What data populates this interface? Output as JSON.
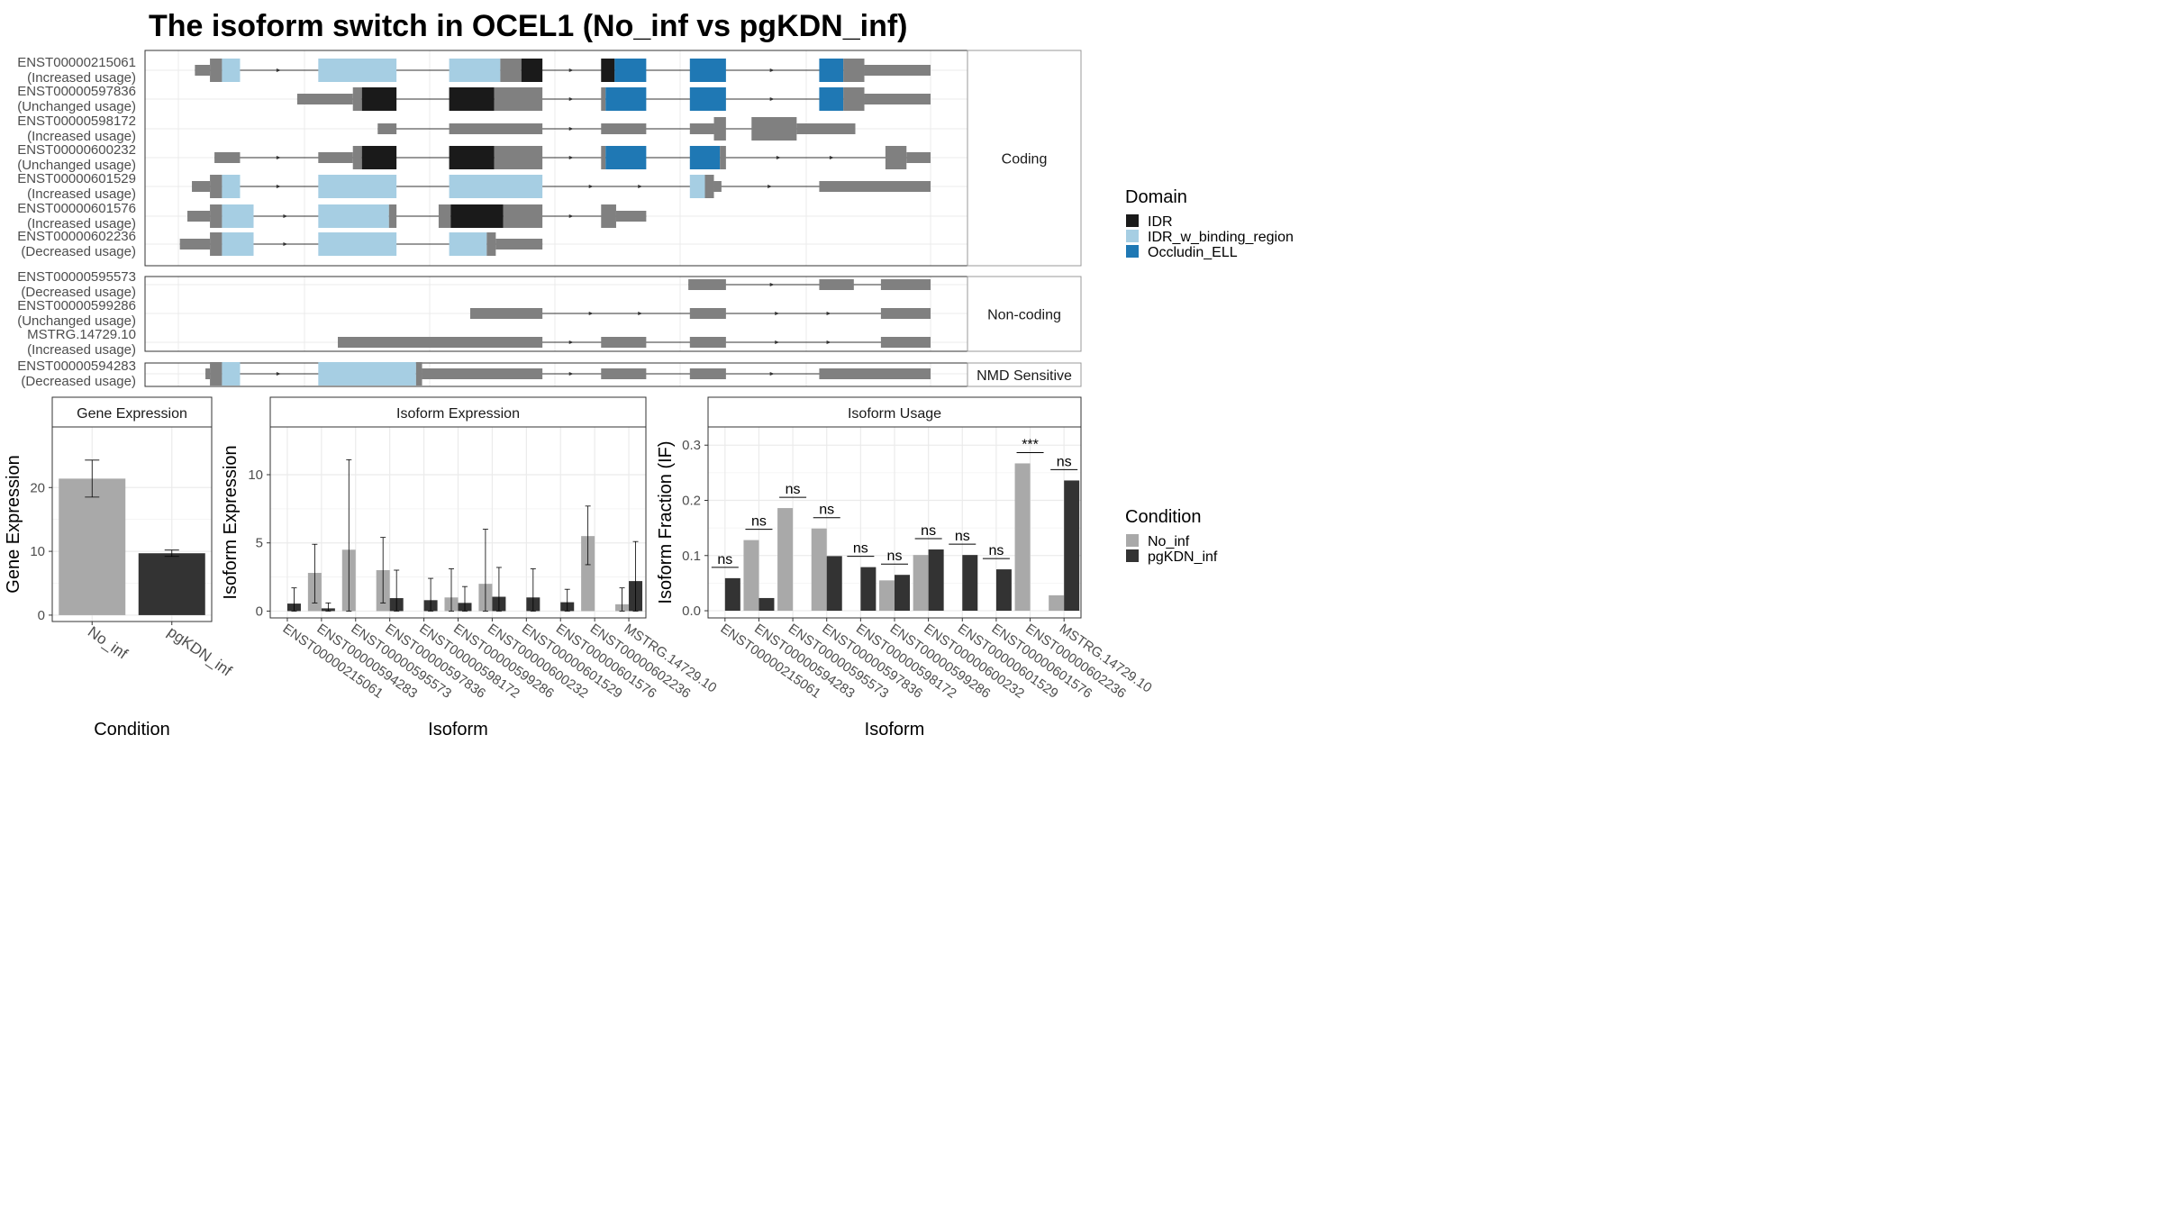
{
  "title": "The isoform switch in OCEL1 (No_inf vs pgKDN_inf)",
  "colors": {
    "IDR": "#1a1a1a",
    "IDR_w_binding_region": "#a6cee3",
    "Occludin_ELL": "#1f78b4",
    "exon": "#808080",
    "No_inf": "#a9a9a9",
    "pgKDN_inf": "#333333"
  },
  "domain_legend": {
    "title": "Domain",
    "items": [
      {
        "key": "IDR",
        "label": "IDR"
      },
      {
        "key": "IDR_w_binding_region",
        "label": "IDR_w_binding_region"
      },
      {
        "key": "Occludin_ELL",
        "label": "Occludin_ELL"
      }
    ]
  },
  "condition_legend": {
    "title": "Condition",
    "items": [
      {
        "key": "No_inf",
        "label": "No_inf"
      },
      {
        "key": "pgKDN_inf",
        "label": "pgKDN_inf"
      }
    ]
  },
  "structure": {
    "xlim": [
      0,
      1000
    ],
    "panels": [
      {
        "label": "Coding",
        "tracks": [
          {
            "id": "ENST00000215061",
            "usage": "(Increased usage)",
            "span": [
              22,
              1000
            ],
            "segments": [
              {
                "s": 22,
                "e": 42,
                "k": "u"
              },
              {
                "s": 42,
                "e": 58,
                "k": "exon"
              },
              {
                "s": 58,
                "e": 82,
                "k": "IDR_w_binding_region"
              },
              {
                "s": 186,
                "e": 290,
                "k": "IDR_w_binding_region"
              },
              {
                "s": 360,
                "e": 428,
                "k": "IDR_w_binding_region"
              },
              {
                "s": 428,
                "e": 456,
                "k": "exon"
              },
              {
                "s": 456,
                "e": 484,
                "k": "IDR"
              },
              {
                "s": 562,
                "e": 580,
                "k": "IDR"
              },
              {
                "s": 580,
                "e": 622,
                "k": "Occludin_ELL"
              },
              {
                "s": 680,
                "e": 728,
                "k": "Occludin_ELL"
              },
              {
                "s": 852,
                "e": 884,
                "k": "Occludin_ELL"
              },
              {
                "s": 884,
                "e": 912,
                "k": "exon"
              },
              {
                "s": 912,
                "e": 1000,
                "k": "u"
              }
            ]
          },
          {
            "id": "ENST00000597836",
            "usage": "(Unchanged usage)",
            "span": [
              158,
              1000
            ],
            "segments": [
              {
                "s": 158,
                "e": 232,
                "k": "u"
              },
              {
                "s": 232,
                "e": 244,
                "k": "exon"
              },
              {
                "s": 244,
                "e": 290,
                "k": "IDR"
              },
              {
                "s": 360,
                "e": 420,
                "k": "IDR"
              },
              {
                "s": 420,
                "e": 484,
                "k": "exon"
              },
              {
                "s": 562,
                "e": 568,
                "k": "exon"
              },
              {
                "s": 568,
                "e": 622,
                "k": "Occludin_ELL"
              },
              {
                "s": 680,
                "e": 728,
                "k": "Occludin_ELL"
              },
              {
                "s": 852,
                "e": 884,
                "k": "Occludin_ELL"
              },
              {
                "s": 884,
                "e": 912,
                "k": "exon"
              },
              {
                "s": 912,
                "e": 1000,
                "k": "u"
              }
            ]
          },
          {
            "id": "ENST00000598172",
            "usage": "(Increased usage)",
            "span": [
              265,
              900
            ],
            "segments": [
              {
                "s": 265,
                "e": 290,
                "k": "u"
              },
              {
                "s": 360,
                "e": 484,
                "k": "u"
              },
              {
                "s": 562,
                "e": 622,
                "k": "u"
              },
              {
                "s": 680,
                "e": 712,
                "k": "u"
              },
              {
                "s": 712,
                "e": 728,
                "k": "exon"
              },
              {
                "s": 762,
                "e": 822,
                "k": "exon"
              },
              {
                "s": 822,
                "e": 900,
                "k": "u"
              }
            ]
          },
          {
            "id": "ENST00000600232",
            "usage": "(Unchanged usage)",
            "span": [
              48,
              1000
            ],
            "segments": [
              {
                "s": 48,
                "e": 82,
                "k": "u"
              },
              {
                "s": 186,
                "e": 232,
                "k": "u"
              },
              {
                "s": 232,
                "e": 244,
                "k": "exon"
              },
              {
                "s": 244,
                "e": 290,
                "k": "IDR"
              },
              {
                "s": 360,
                "e": 420,
                "k": "IDR"
              },
              {
                "s": 420,
                "e": 484,
                "k": "exon"
              },
              {
                "s": 562,
                "e": 568,
                "k": "exon"
              },
              {
                "s": 568,
                "e": 622,
                "k": "Occludin_ELL"
              },
              {
                "s": 680,
                "e": 720,
                "k": "Occludin_ELL"
              },
              {
                "s": 720,
                "e": 728,
                "k": "exon"
              },
              {
                "s": 940,
                "e": 968,
                "k": "exon"
              },
              {
                "s": 968,
                "e": 1000,
                "k": "u"
              }
            ]
          },
          {
            "id": "ENST00000601529",
            "usage": "(Increased usage)",
            "span": [
              18,
              1000
            ],
            "segments": [
              {
                "s": 18,
                "e": 42,
                "k": "u"
              },
              {
                "s": 42,
                "e": 58,
                "k": "exon"
              },
              {
                "s": 58,
                "e": 82,
                "k": "IDR_w_binding_region"
              },
              {
                "s": 186,
                "e": 290,
                "k": "IDR_w_binding_region"
              },
              {
                "s": 360,
                "e": 484,
                "k": "IDR_w_binding_region"
              },
              {
                "s": 680,
                "e": 700,
                "k": "IDR_w_binding_region"
              },
              {
                "s": 700,
                "e": 712,
                "k": "exon"
              },
              {
                "s": 712,
                "e": 722,
                "k": "u"
              },
              {
                "s": 852,
                "e": 1000,
                "k": "u"
              }
            ]
          },
          {
            "id": "ENST00000601576",
            "usage": "(Increased usage)",
            "span": [
              12,
              622
            ],
            "segments": [
              {
                "s": 12,
                "e": 42,
                "k": "u"
              },
              {
                "s": 42,
                "e": 58,
                "k": "exon"
              },
              {
                "s": 58,
                "e": 100,
                "k": "IDR_w_binding_region"
              },
              {
                "s": 186,
                "e": 280,
                "k": "IDR_w_binding_region"
              },
              {
                "s": 280,
                "e": 290,
                "k": "exon"
              },
              {
                "s": 346,
                "e": 362,
                "k": "exon"
              },
              {
                "s": 362,
                "e": 432,
                "k": "IDR"
              },
              {
                "s": 432,
                "e": 484,
                "k": "exon"
              },
              {
                "s": 562,
                "e": 582,
                "k": "exon"
              },
              {
                "s": 582,
                "e": 622,
                "k": "u"
              }
            ]
          },
          {
            "id": "ENST00000602236",
            "usage": "(Decreased usage)",
            "span": [
              2,
              484
            ],
            "segments": [
              {
                "s": 2,
                "e": 42,
                "k": "u"
              },
              {
                "s": 42,
                "e": 58,
                "k": "exon"
              },
              {
                "s": 58,
                "e": 100,
                "k": "IDR_w_binding_region"
              },
              {
                "s": 186,
                "e": 290,
                "k": "IDR_w_binding_region"
              },
              {
                "s": 360,
                "e": 410,
                "k": "IDR_w_binding_region"
              },
              {
                "s": 410,
                "e": 422,
                "k": "exon"
              },
              {
                "s": 422,
                "e": 484,
                "k": "u"
              }
            ]
          }
        ]
      },
      {
        "label": "Non-coding",
        "tracks": [
          {
            "id": "ENST00000595573",
            "usage": "(Decreased usage)",
            "span": [
              678,
              1000
            ],
            "segments": [
              {
                "s": 678,
                "e": 728,
                "k": "u"
              },
              {
                "s": 852,
                "e": 898,
                "k": "u"
              },
              {
                "s": 934,
                "e": 1000,
                "k": "u"
              }
            ]
          },
          {
            "id": "ENST00000599286",
            "usage": "(Unchanged usage)",
            "span": [
              388,
              1000
            ],
            "segments": [
              {
                "s": 388,
                "e": 484,
                "k": "u"
              },
              {
                "s": 680,
                "e": 728,
                "k": "u"
              },
              {
                "s": 934,
                "e": 1000,
                "k": "u"
              }
            ]
          },
          {
            "id": "MSTRG.14729.10",
            "usage": "(Increased usage)",
            "span": [
              212,
              1000
            ],
            "segments": [
              {
                "s": 212,
                "e": 484,
                "k": "u"
              },
              {
                "s": 562,
                "e": 622,
                "k": "u"
              },
              {
                "s": 680,
                "e": 728,
                "k": "u"
              },
              {
                "s": 934,
                "e": 1000,
                "k": "u"
              }
            ]
          }
        ]
      },
      {
        "label": "NMD Sensitive",
        "tracks": [
          {
            "id": "ENST00000594283",
            "usage": "(Decreased usage)",
            "span": [
              36,
              1000
            ],
            "segments": [
              {
                "s": 36,
                "e": 42,
                "k": "u"
              },
              {
                "s": 42,
                "e": 58,
                "k": "exon"
              },
              {
                "s": 58,
                "e": 82,
                "k": "IDR_w_binding_region"
              },
              {
                "s": 186,
                "e": 316,
                "k": "IDR_w_binding_region"
              },
              {
                "s": 316,
                "e": 324,
                "k": "exon"
              },
              {
                "s": 324,
                "e": 484,
                "k": "u"
              },
              {
                "s": 562,
                "e": 622,
                "k": "u"
              },
              {
                "s": 680,
                "e": 728,
                "k": "u"
              },
              {
                "s": 852,
                "e": 1000,
                "k": "u"
              }
            ]
          }
        ]
      }
    ]
  },
  "chart_data": [
    {
      "type": "bar",
      "title": "Gene Expression",
      "xlabel": "Condition",
      "ylabel": "Gene Expression",
      "categories": [
        "No_inf",
        "pgKDN_inf"
      ],
      "values": [
        21.4,
        9.7
      ],
      "errors": [
        [
          18.5,
          24.3
        ],
        [
          9.2,
          10.2
        ]
      ],
      "ylim": [
        -1,
        29.5
      ],
      "yticks": [
        0,
        10,
        20
      ]
    },
    {
      "type": "bar",
      "title": "Isoform Expression",
      "xlabel": "Isoform",
      "ylabel": "Isoform Expression",
      "categories": [
        "ENST00000215061",
        "ENST00000594283",
        "ENST00000595573",
        "ENST00000597836",
        "ENST00000598172",
        "ENST00000599286",
        "ENST00000600232",
        "ENST00000601529",
        "ENST00000601576",
        "ENST00000602236",
        "MSTRG.14729.10"
      ],
      "series": [
        {
          "name": "No_inf",
          "values": [
            0.0,
            2.8,
            4.5,
            3.0,
            0.0,
            1.0,
            2.0,
            0.0,
            0.0,
            5.5,
            0.5
          ],
          "errors": [
            null,
            [
              0.6,
              4.9
            ],
            [
              0.0,
              11.1
            ],
            [
              0.6,
              5.4
            ],
            null,
            [
              0.0,
              3.1
            ],
            [
              0.0,
              6.0
            ],
            null,
            null,
            [
              3.4,
              7.7
            ],
            [
              0.0,
              1.7
            ]
          ]
        },
        {
          "name": "pgKDN_inf",
          "values": [
            0.55,
            0.2,
            0.0,
            0.95,
            0.8,
            0.6,
            1.05,
            1.0,
            0.65,
            0.0,
            2.2
          ],
          "errors": [
            [
              0.0,
              1.7
            ],
            [
              0.0,
              0.6
            ],
            null,
            [
              0.0,
              3.0
            ],
            [
              0.0,
              2.4
            ],
            [
              0.0,
              1.8
            ],
            [
              0.0,
              3.2
            ],
            [
              0.0,
              3.1
            ],
            [
              0.0,
              1.6
            ],
            null,
            [
              0.0,
              5.1
            ]
          ]
        }
      ],
      "ylim": [
        -0.5,
        13.5
      ],
      "yticks": [
        0,
        5,
        10
      ]
    },
    {
      "type": "bar",
      "title": "Isoform Usage",
      "xlabel": "Isoform",
      "ylabel": "Isoform Fraction (IF)",
      "categories": [
        "ENST00000215061",
        "ENST00000594283",
        "ENST00000595573",
        "ENST00000597836",
        "ENST00000598172",
        "ENST00000599286",
        "ENST00000600232",
        "ENST00000601529",
        "ENST00000601576",
        "ENST00000602236",
        "MSTRG.14729.10"
      ],
      "series": [
        {
          "name": "No_inf",
          "values": [
            0.0,
            0.128,
            0.186,
            0.149,
            0.0,
            0.055,
            0.101,
            0.0,
            0.0,
            0.267,
            0.028
          ]
        },
        {
          "name": "pgKDN_inf",
          "values": [
            0.059,
            0.023,
            0.0,
            0.099,
            0.079,
            0.065,
            0.111,
            0.101,
            0.075,
            0.0,
            0.236
          ]
        }
      ],
      "significance": [
        "ns",
        "ns",
        "ns",
        "ns",
        "ns",
        "ns",
        "ns",
        "ns",
        "ns",
        "***",
        "ns"
      ],
      "ylim": [
        -0.013,
        0.333
      ],
      "yticks": [
        0.0,
        0.1,
        0.2,
        0.3
      ]
    }
  ]
}
